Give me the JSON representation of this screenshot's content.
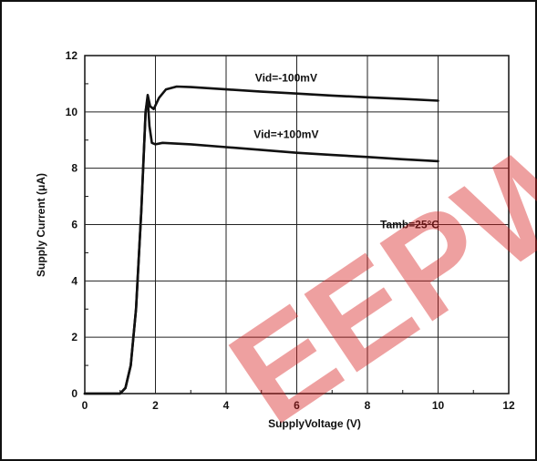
{
  "chart_data": {
    "type": "line",
    "xlabel": "SupplyVoltage (V)",
    "ylabel": "Supply Current (μA)",
    "xlim": [
      0,
      12
    ],
    "ylim": [
      0,
      12
    ],
    "x_ticks": [
      0,
      2,
      4,
      6,
      8,
      10,
      12
    ],
    "y_ticks": [
      0,
      2,
      4,
      6,
      8,
      10,
      12
    ],
    "grid": true,
    "series": [
      {
        "name": "Vid=-100mV",
        "points": [
          [
            0,
            0
          ],
          [
            1.0,
            0
          ],
          [
            1.15,
            0.2
          ],
          [
            1.3,
            1.0
          ],
          [
            1.45,
            3.0
          ],
          [
            1.6,
            6.5
          ],
          [
            1.72,
            10.0
          ],
          [
            1.78,
            10.6
          ],
          [
            1.85,
            10.2
          ],
          [
            1.95,
            10.1
          ],
          [
            2.1,
            10.5
          ],
          [
            2.3,
            10.8
          ],
          [
            2.6,
            10.9
          ],
          [
            3,
            10.88
          ],
          [
            4,
            10.8
          ],
          [
            5,
            10.72
          ],
          [
            6,
            10.65
          ],
          [
            7,
            10.58
          ],
          [
            8,
            10.52
          ],
          [
            9,
            10.46
          ],
          [
            10,
            10.4
          ]
        ]
      },
      {
        "name": "Vid=+100mV",
        "points": [
          [
            0,
            0
          ],
          [
            1.0,
            0
          ],
          [
            1.15,
            0.2
          ],
          [
            1.3,
            1.0
          ],
          [
            1.45,
            3.0
          ],
          [
            1.6,
            6.5
          ],
          [
            1.72,
            10.0
          ],
          [
            1.78,
            10.5
          ],
          [
            1.83,
            9.5
          ],
          [
            1.9,
            8.9
          ],
          [
            2,
            8.85
          ],
          [
            2.2,
            8.9
          ],
          [
            3,
            8.85
          ],
          [
            4,
            8.75
          ],
          [
            5,
            8.65
          ],
          [
            6,
            8.55
          ],
          [
            7,
            8.47
          ],
          [
            8,
            8.4
          ],
          [
            9,
            8.32
          ],
          [
            10,
            8.25
          ]
        ]
      }
    ],
    "annotations": [
      {
        "text": "Vid=-100mV",
        "x": 5.7,
        "y": 11.2
      },
      {
        "text": "Vid=+100mV",
        "x": 5.7,
        "y": 9.2
      },
      {
        "text": "Tamb=25°C",
        "x": 9.2,
        "y": 6
      }
    ]
  },
  "watermark": {
    "text": "EEPW",
    "color": "#d81e1e"
  }
}
